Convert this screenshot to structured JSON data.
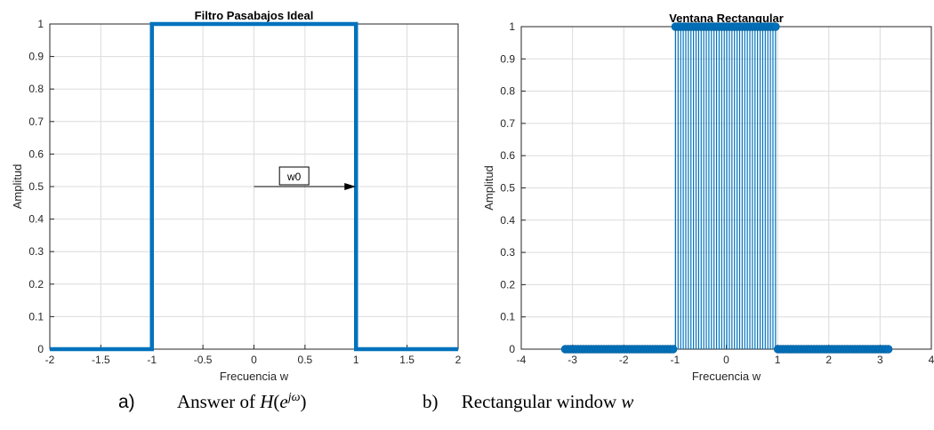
{
  "chart_data": [
    {
      "type": "line",
      "title": "Filtro Pasabajos Ideal",
      "xlabel": "Frecuencia w",
      "ylabel": "Amplitud",
      "xlim": [
        -2,
        2
      ],
      "ylim": [
        0,
        1
      ],
      "grid": true,
      "xticks": [
        "-2",
        "-1.5",
        "-1",
        "-0.5",
        "0",
        "0.5",
        "1",
        "1.5",
        "2"
      ],
      "yticks": [
        "0",
        "0.1",
        "0.2",
        "0.3",
        "0.4",
        "0.5",
        "0.6",
        "0.7",
        "0.8",
        "0.9",
        "1"
      ],
      "series": [
        {
          "color": "#0072BD",
          "x": [
            -2,
            -1,
            -1,
            1,
            1,
            2
          ],
          "y": [
            0,
            0,
            1,
            1,
            0,
            0
          ]
        }
      ],
      "annotations": [
        {
          "text": "w0",
          "type": "arrow",
          "from": [
            0,
            0.5
          ],
          "to": [
            1,
            0.5
          ]
        }
      ]
    },
    {
      "type": "stem",
      "title": "Ventana Rectangular",
      "xlabel": "Frecuencia w",
      "ylabel": "Amplitud",
      "xlim": [
        -4,
        4
      ],
      "ylim": [
        0,
        1
      ],
      "grid": true,
      "xticks": [
        "-4",
        "-3",
        "-2",
        "-1",
        "0",
        "1",
        "2",
        "3",
        "4"
      ],
      "yticks": [
        "0",
        "0.1",
        "0.2",
        "0.3",
        "0.4",
        "0.5",
        "0.6",
        "0.7",
        "0.8",
        "0.9",
        "1"
      ],
      "series": [
        {
          "color": "#0072BD",
          "x_range": [
            -3.14,
            3.14
          ],
          "step": 0.05,
          "value_inside": 1,
          "value_outside": 0,
          "cutoff": 1
        }
      ]
    }
  ],
  "captions": {
    "a_label": "a)",
    "a_text": "Answer of ",
    "a_h": "H",
    "a_open": "(",
    "a_e": "e",
    "a_exp": "jω",
    "a_close": ")",
    "b_label": "b)",
    "b_text": "Rectangular window ",
    "b_w": "w"
  }
}
